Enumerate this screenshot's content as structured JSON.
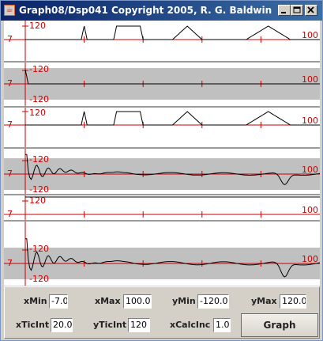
{
  "window": {
    "title": "Graph08/Dsp041 Copyright 2005, R. G. Baldwin",
    "icon": "java-cup-icon",
    "buttons": [
      "minimize-icon",
      "maximize-icon",
      "close-icon"
    ]
  },
  "colors": {
    "axis": "#cc0000",
    "trace": "#000000",
    "band": "#c0c0c0",
    "title_bar": "#0a246a"
  },
  "plots": [
    {
      "name": "plot-1",
      "shaded": false,
      "ytop": "120",
      "ybottom": "",
      "xmin": "-7",
      "xmax": "100",
      "signal": "pulses"
    },
    {
      "name": "plot-2",
      "shaded": true,
      "ytop": "-120",
      "ybottom": "-120",
      "xmin": "-7",
      "xmax": "100",
      "signal": "impulse"
    },
    {
      "name": "plot-3",
      "shaded": false,
      "ytop": "120",
      "ybottom": "",
      "xmin": "-7",
      "xmax": "100",
      "signal": "pulses"
    },
    {
      "name": "plot-4",
      "shaded": true,
      "ytop": "-120",
      "ybottom": "-120",
      "xmin": "-7",
      "xmax": "100",
      "signal": "decay"
    },
    {
      "name": "plot-5",
      "shaded": false,
      "ytop": "120",
      "ybottom": "",
      "xmin": "-7",
      "xmax": "100",
      "signal": "step"
    },
    {
      "name": "plot-6",
      "shaded": true,
      "ytop": "-120",
      "ybottom": "-120",
      "xmin": "-7",
      "xmax": "100",
      "signal": "decay"
    }
  ],
  "controls": {
    "xmin": {
      "label": "xMin",
      "value": "-7.0"
    },
    "xmax": {
      "label": "xMax",
      "value": "100.0"
    },
    "ymin": {
      "label": "yMin",
      "value": "-120.0"
    },
    "ymax": {
      "label": "yMax",
      "value": "120.0"
    },
    "xticint": {
      "label": "xTicInt",
      "value": "20.0"
    },
    "yticint": {
      "label": "yTicInt",
      "value": "120"
    },
    "xcalcinc": {
      "label": "xCalcInc",
      "value": "1.0"
    },
    "graph_button": "Graph"
  }
}
